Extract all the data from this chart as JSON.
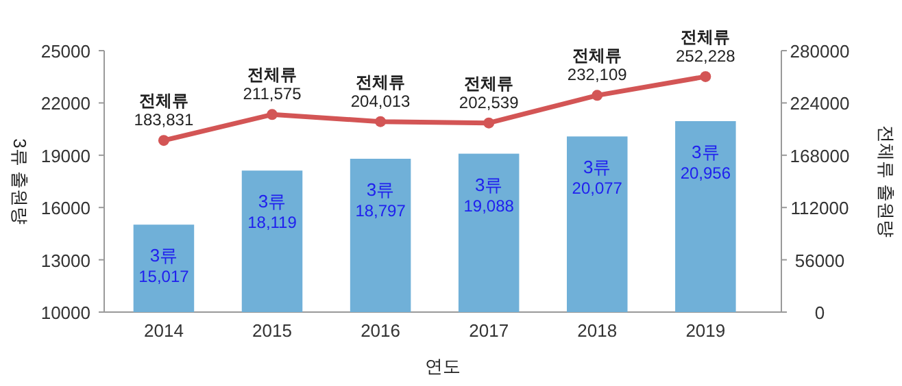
{
  "chart_data": {
    "type": "bar",
    "categories": [
      "2014",
      "2015",
      "2016",
      "2017",
      "2018",
      "2019"
    ],
    "series": [
      {
        "name": "3류",
        "color": "#70b0d8",
        "values": [
          15017,
          18119,
          18797,
          19088,
          20077,
          20956
        ],
        "value_labels": [
          "15,017",
          "18,119",
          "18,797",
          "19,088",
          "20,077",
          "20,956"
        ]
      },
      {
        "name": "전체류",
        "type": "line",
        "axis": "y2",
        "color": "#d35555",
        "marker": "circle",
        "values": [
          183831,
          211575,
          204013,
          202539,
          232109,
          252228
        ],
        "value_labels": [
          "183,831",
          "211,575",
          "204,013",
          "202,539",
          "232,109",
          "252,228"
        ]
      }
    ],
    "xlabel": "연도",
    "ylabel": "3류 출원량",
    "y2label": "전체류 출원량",
    "ylim": [
      10000,
      25000
    ],
    "yticks": [
      10000,
      13000,
      16000,
      19000,
      22000,
      25000
    ],
    "y2lim": [
      0,
      280000
    ],
    "y2ticks": [
      0,
      56000,
      112000,
      168000,
      224000,
      280000
    ]
  }
}
